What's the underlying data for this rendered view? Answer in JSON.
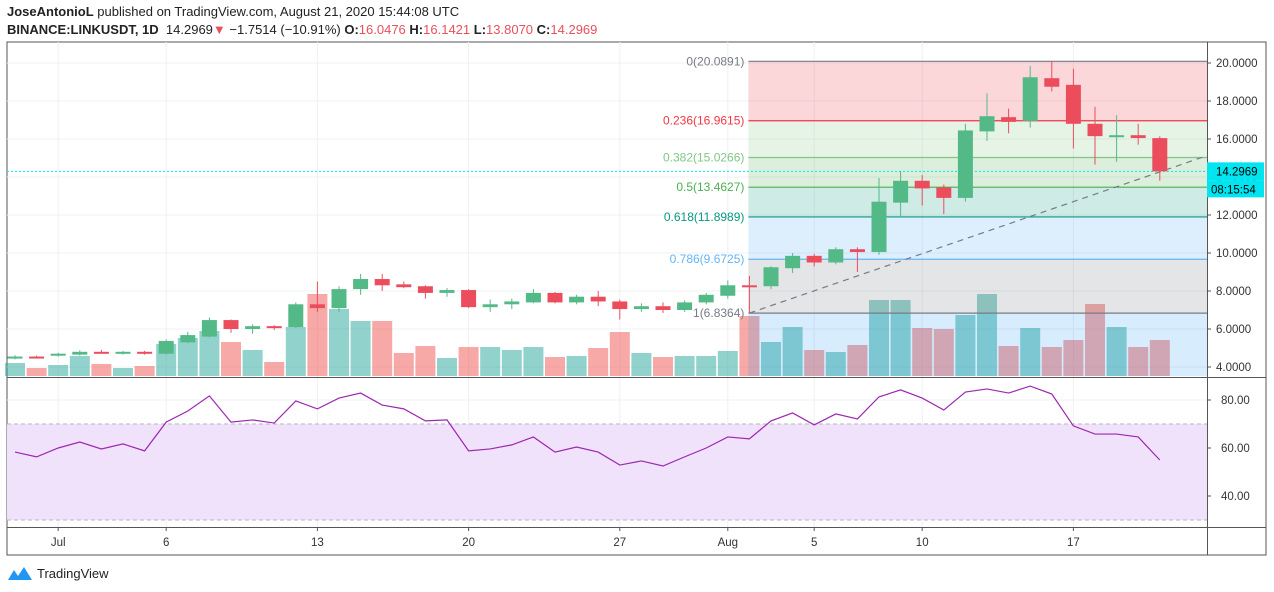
{
  "header": {
    "author": "JoseAntonioL",
    "published": "published on TradingView.com, August 21, 2020 15:44:08 UTC",
    "symbol": "BINANCE:LINKUSDT, 1D",
    "last": "14.2969",
    "change_arrow": "▼",
    "change": "−1.7514 (−10.91%)",
    "o_label": "O:",
    "o": "16.0476",
    "h_label": "H:",
    "h": "16.1421",
    "l_label": "L:",
    "l": "13.8070",
    "c_label": "C:",
    "c": "14.2969"
  },
  "footer": {
    "brand": "TradingView",
    "logo_icon": "tradingview-logo-icon"
  },
  "colors": {
    "up": "#53b987",
    "down": "#eb4d5c",
    "last_price": "#00e5f0",
    "rsi_line": "#9c27b0",
    "rsi_band": "#f1e2fb"
  },
  "chart_data": {
    "type": "candlestick",
    "title": "",
    "price_axis": {
      "ticks": [
        "20.0000",
        "18.0000",
        "16.0000",
        "14.0000",
        "12.0000",
        "10.0000",
        "8.0000",
        "6.0000",
        "4.0000"
      ],
      "ylim": [
        3.75,
        21.1
      ]
    },
    "last_price": {
      "value": "14.2969",
      "countdown": "08:15:54"
    },
    "time_axis": {
      "ticks": [
        {
          "date": "2020-07-01",
          "label": "Jul"
        },
        {
          "date": "2020-07-06",
          "label": "6"
        },
        {
          "date": "2020-07-13",
          "label": "13"
        },
        {
          "date": "2020-07-20",
          "label": "20"
        },
        {
          "date": "2020-07-27",
          "label": "27"
        },
        {
          "date": "2020-08-01",
          "label": "Aug"
        },
        {
          "date": "2020-08-05",
          "label": "5"
        },
        {
          "date": "2020-08-10",
          "label": "10"
        },
        {
          "date": "2020-08-17",
          "label": "17"
        }
      ]
    },
    "grid": true,
    "candles": [
      {
        "date": "2020-06-29",
        "o": 4.5,
        "h": 4.62,
        "l": 4.4,
        "c": 4.55,
        "v": 13
      },
      {
        "date": "2020-06-30",
        "o": 4.55,
        "h": 4.6,
        "l": 4.48,
        "c": 4.52,
        "v": 8
      },
      {
        "date": "2020-07-01",
        "o": 4.6,
        "h": 4.75,
        "l": 4.55,
        "c": 4.7,
        "v": 11
      },
      {
        "date": "2020-07-02",
        "o": 4.65,
        "h": 4.88,
        "l": 4.6,
        "c": 4.8,
        "v": 20
      },
      {
        "date": "2020-07-03",
        "o": 4.8,
        "h": 4.9,
        "l": 4.7,
        "c": 4.75,
        "v": 12
      },
      {
        "date": "2020-07-04",
        "o": 4.7,
        "h": 4.85,
        "l": 4.65,
        "c": 4.8,
        "v": 8
      },
      {
        "date": "2020-07-05",
        "o": 4.8,
        "h": 4.85,
        "l": 4.65,
        "c": 4.75,
        "v": 10
      },
      {
        "date": "2020-07-06",
        "o": 4.7,
        "h": 5.45,
        "l": 4.65,
        "c": 5.37,
        "v": 32
      },
      {
        "date": "2020-07-07",
        "o": 5.3,
        "h": 5.85,
        "l": 5.25,
        "c": 5.68,
        "v": 38
      },
      {
        "date": "2020-07-08",
        "o": 5.6,
        "h": 6.6,
        "l": 5.55,
        "c": 6.47,
        "v": 45
      },
      {
        "date": "2020-07-09",
        "o": 6.47,
        "h": 6.5,
        "l": 5.8,
        "c": 6.0,
        "v": 34
      },
      {
        "date": "2020-07-10",
        "o": 6.0,
        "h": 6.25,
        "l": 5.75,
        "c": 6.15,
        "v": 26
      },
      {
        "date": "2020-07-11",
        "o": 6.15,
        "h": 6.2,
        "l": 5.95,
        "c": 6.05,
        "v": 14
      },
      {
        "date": "2020-07-12",
        "o": 6.1,
        "h": 7.4,
        "l": 6.05,
        "c": 7.3,
        "v": 49
      },
      {
        "date": "2020-07-13",
        "o": 7.3,
        "h": 8.5,
        "l": 6.9,
        "c": 7.1,
        "v": 82
      },
      {
        "date": "2020-07-14",
        "o": 7.1,
        "h": 8.25,
        "l": 6.9,
        "c": 8.1,
        "v": 67
      },
      {
        "date": "2020-07-15",
        "o": 8.1,
        "h": 8.9,
        "l": 7.8,
        "c": 8.63,
        "v": 55
      },
      {
        "date": "2020-07-16",
        "o": 8.63,
        "h": 8.9,
        "l": 8.0,
        "c": 8.3,
        "v": 55
      },
      {
        "date": "2020-07-17",
        "o": 8.35,
        "h": 8.5,
        "l": 8.15,
        "c": 8.2,
        "v": 23
      },
      {
        "date": "2020-07-18",
        "o": 8.25,
        "h": 8.3,
        "l": 7.6,
        "c": 7.9,
        "v": 30
      },
      {
        "date": "2020-07-19",
        "o": 7.9,
        "h": 8.15,
        "l": 7.7,
        "c": 8.05,
        "v": 18
      },
      {
        "date": "2020-07-20",
        "o": 8.05,
        "h": 8.1,
        "l": 7.1,
        "c": 7.15,
        "v": 29
      },
      {
        "date": "2020-07-21",
        "o": 7.15,
        "h": 7.55,
        "l": 6.9,
        "c": 7.3,
        "v": 29
      },
      {
        "date": "2020-07-22",
        "o": 7.3,
        "h": 7.6,
        "l": 7.05,
        "c": 7.45,
        "v": 26
      },
      {
        "date": "2020-07-23",
        "o": 7.4,
        "h": 8.1,
        "l": 7.35,
        "c": 7.9,
        "v": 29
      },
      {
        "date": "2020-07-24",
        "o": 7.9,
        "h": 7.95,
        "l": 7.35,
        "c": 7.4,
        "v": 19
      },
      {
        "date": "2020-07-25",
        "o": 7.4,
        "h": 7.8,
        "l": 7.3,
        "c": 7.7,
        "v": 20
      },
      {
        "date": "2020-07-26",
        "o": 7.7,
        "h": 8.0,
        "l": 7.2,
        "c": 7.45,
        "v": 28
      },
      {
        "date": "2020-07-27",
        "o": 7.45,
        "h": 7.55,
        "l": 6.5,
        "c": 7.05,
        "v": 44
      },
      {
        "date": "2020-07-28",
        "o": 7.05,
        "h": 7.35,
        "l": 6.9,
        "c": 7.2,
        "v": 23
      },
      {
        "date": "2020-07-29",
        "o": 7.2,
        "h": 7.4,
        "l": 6.85,
        "c": 7.0,
        "v": 19
      },
      {
        "date": "2020-07-30",
        "o": 7.0,
        "h": 7.5,
        "l": 6.9,
        "c": 7.4,
        "v": 20
      },
      {
        "date": "2020-07-31",
        "o": 7.4,
        "h": 7.9,
        "l": 7.3,
        "c": 7.8,
        "v": 20
      },
      {
        "date": "2020-08-01",
        "o": 7.75,
        "h": 8.55,
        "l": 7.6,
        "c": 8.3,
        "v": 25
      },
      {
        "date": "2020-08-02",
        "o": 8.3,
        "h": 8.8,
        "l": 6.84,
        "c": 8.25,
        "v": 60
      },
      {
        "date": "2020-08-03",
        "o": 8.25,
        "h": 9.3,
        "l": 8.1,
        "c": 9.25,
        "v": 34
      },
      {
        "date": "2020-08-04",
        "o": 9.2,
        "h": 10.0,
        "l": 8.95,
        "c": 9.85,
        "v": 49
      },
      {
        "date": "2020-08-05",
        "o": 9.85,
        "h": 9.95,
        "l": 9.3,
        "c": 9.5,
        "v": 26
      },
      {
        "date": "2020-08-06",
        "o": 9.5,
        "h": 10.3,
        "l": 9.4,
        "c": 10.2,
        "v": 24
      },
      {
        "date": "2020-08-07",
        "o": 10.2,
        "h": 10.3,
        "l": 9.0,
        "c": 10.05,
        "v": 31
      },
      {
        "date": "2020-08-08",
        "o": 10.05,
        "h": 13.95,
        "l": 9.9,
        "c": 12.7,
        "v": 76
      },
      {
        "date": "2020-08-09",
        "o": 12.65,
        "h": 14.3,
        "l": 11.95,
        "c": 13.8,
        "v": 76
      },
      {
        "date": "2020-08-10",
        "o": 13.8,
        "h": 14.1,
        "l": 12.5,
        "c": 13.4,
        "v": 48
      },
      {
        "date": "2020-08-11",
        "o": 13.45,
        "h": 13.6,
        "l": 12.05,
        "c": 12.9,
        "v": 47
      },
      {
        "date": "2020-08-12",
        "o": 12.9,
        "h": 16.8,
        "l": 12.7,
        "c": 16.45,
        "v": 61
      },
      {
        "date": "2020-08-13",
        "o": 16.4,
        "h": 18.4,
        "l": 15.9,
        "c": 17.2,
        "v": 82
      },
      {
        "date": "2020-08-14",
        "o": 17.15,
        "h": 17.6,
        "l": 16.3,
        "c": 16.9,
        "v": 30
      },
      {
        "date": "2020-08-15",
        "o": 16.95,
        "h": 19.85,
        "l": 16.6,
        "c": 19.25,
        "v": 48
      },
      {
        "date": "2020-08-16",
        "o": 19.2,
        "h": 20.08,
        "l": 18.5,
        "c": 18.75,
        "v": 29
      },
      {
        "date": "2020-08-17",
        "o": 18.85,
        "h": 19.7,
        "l": 15.5,
        "c": 16.8,
        "v": 36
      },
      {
        "date": "2020-08-18",
        "o": 16.8,
        "h": 17.7,
        "l": 14.65,
        "c": 16.15,
        "v": 72
      },
      {
        "date": "2020-08-19",
        "o": 16.15,
        "h": 17.25,
        "l": 14.8,
        "c": 16.2,
        "v": 49
      },
      {
        "date": "2020-08-20",
        "o": 16.2,
        "h": 16.8,
        "l": 15.7,
        "c": 16.05,
        "v": 29
      },
      {
        "date": "2020-08-21",
        "o": 16.0476,
        "h": 16.1421,
        "l": 13.807,
        "c": 14.2969,
        "v": 36
      }
    ],
    "fibonacci": {
      "start_date": "2020-08-02",
      "levels": [
        {
          "ratio": "0",
          "price": 20.0891,
          "label": "0(20.0891)",
          "color": "#787b86",
          "fill": "rgba(242,54,69,0.2)"
        },
        {
          "ratio": "0.236",
          "price": 16.9615,
          "label": "0.236(16.9615)",
          "color": "#f23645",
          "fill": "rgba(129,199,132,0.2)"
        },
        {
          "ratio": "0.382",
          "price": 15.0266,
          "label": "0.382(15.0266)",
          "color": "#81c784",
          "fill": "rgba(76,175,80,0.2)"
        },
        {
          "ratio": "0.5",
          "price": 13.4627,
          "label": "0.5(13.4627)",
          "color": "#4caf50",
          "fill": "rgba(8,153,129,0.2)"
        },
        {
          "ratio": "0.618",
          "price": 11.8989,
          "label": "0.618(11.8989)",
          "color": "#089981",
          "fill": "rgba(100,181,246,0.22)"
        },
        {
          "ratio": "0.786",
          "price": 9.6725,
          "label": "0.786(9.6725)",
          "color": "#64b5f6",
          "fill": "rgba(120,123,134,0.2)"
        },
        {
          "ratio": "1",
          "price": 6.8364,
          "label": "1(6.8364)",
          "color": "#787b86",
          "fill": "rgba(33,150,243,0.18)"
        }
      ]
    },
    "trend_line": {
      "start": {
        "date": "2020-08-02",
        "price": 6.8364
      },
      "end": {
        "date": "2020-08-23",
        "price": 15.05
      }
    },
    "rsi": {
      "ticks": [
        "80.00",
        "60.00",
        "40.00"
      ],
      "ylim": [
        28,
        86
      ],
      "upper_band": 70,
      "lower_band": 30,
      "values": [
        58.3,
        56.3,
        60,
        62.5,
        59.6,
        61.7,
        58.8,
        70.8,
        75.4,
        81.7,
        70.8,
        71.7,
        70.4,
        79.6,
        76.3,
        80.8,
        82.9,
        77.9,
        76.3,
        71.3,
        71.7,
        58.8,
        59.6,
        61.3,
        64.6,
        58.3,
        60.4,
        58.3,
        52.9,
        54.6,
        52.5,
        56.3,
        60,
        64.6,
        63.8,
        71.3,
        74.6,
        69.6,
        74.2,
        72.1,
        81.3,
        84.2,
        80.8,
        75.8,
        83.3,
        84.6,
        82.9,
        85.8,
        82.5,
        69.2,
        65.8,
        65.8,
        64.6,
        55
      ]
    }
  }
}
